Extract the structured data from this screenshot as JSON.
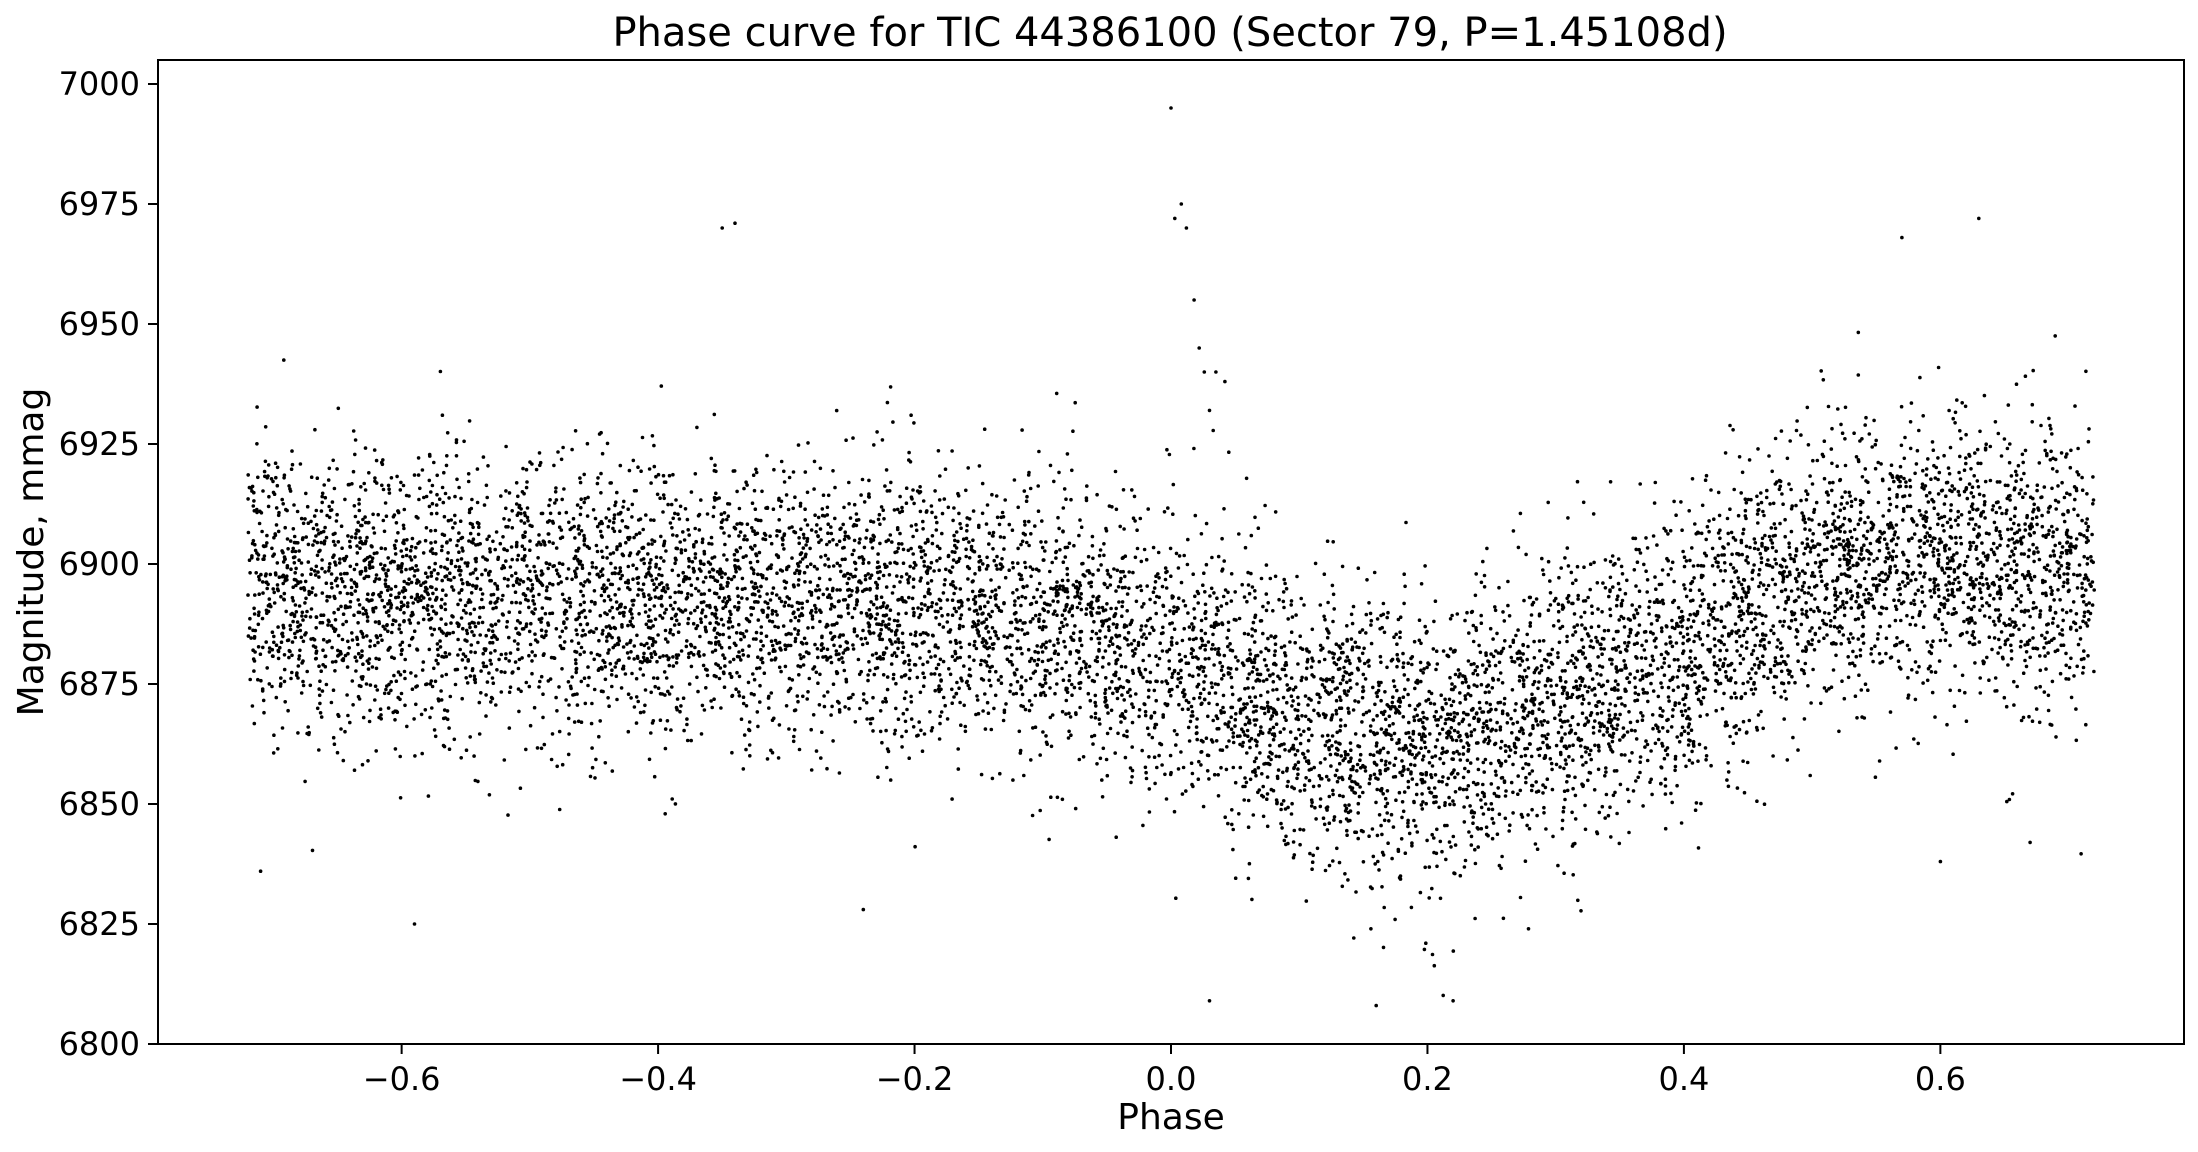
{
  "chart_data": {
    "type": "scatter",
    "title": "Phase curve for TIC 44386100 (Sector 79, P=1.45108d)",
    "xlabel": "Phase",
    "ylabel": "Magnitude, mmag",
    "xlim": [
      -0.79,
      0.79
    ],
    "ylim": [
      6800,
      7005
    ],
    "x_ticks": [
      -0.6,
      -0.4,
      -0.2,
      0.0,
      0.2,
      0.4,
      0.6
    ],
    "x_tick_labels": [
      "−0.6",
      "−0.4",
      "−0.2",
      "0.0",
      "0.2",
      "0.4",
      "0.6"
    ],
    "y_ticks": [
      6800,
      6825,
      6850,
      6875,
      6900,
      6925,
      6950,
      6975,
      7000
    ],
    "y_tick_labels": [
      "6800",
      "6825",
      "6850",
      "6875",
      "6900",
      "6925",
      "6950",
      "6975",
      "7000"
    ],
    "grid": false,
    "marker_color": "#000000",
    "phase_range": [
      -0.72,
      0.72
    ],
    "trend": {
      "x": [
        -0.72,
        -0.6,
        -0.4,
        -0.2,
        -0.1,
        0.0,
        0.1,
        0.15,
        0.2,
        0.25,
        0.3,
        0.4,
        0.5,
        0.6,
        0.72
      ],
      "y": [
        6895,
        6893,
        6893,
        6892,
        6888,
        6880,
        6868,
        6864,
        6864,
        6866,
        6872,
        6883,
        6898,
        6902,
        6898
      ]
    },
    "scatter_sd": 15,
    "n_points": 9000,
    "outliers": [
      {
        "x": 0.0,
        "y": 6995
      },
      {
        "x": 0.003,
        "y": 6972
      },
      {
        "x": 0.008,
        "y": 6975
      },
      {
        "x": 0.012,
        "y": 6970
      },
      {
        "x": 0.018,
        "y": 6955
      },
      {
        "x": 0.022,
        "y": 6945
      },
      {
        "x": 0.026,
        "y": 6940
      },
      {
        "x": 0.03,
        "y": 6932
      },
      {
        "x": 0.035,
        "y": 6940
      },
      {
        "x": 0.042,
        "y": 6938
      },
      {
        "x": -0.34,
        "y": 6971
      },
      {
        "x": -0.35,
        "y": 6970
      },
      {
        "x": 0.57,
        "y": 6968
      },
      {
        "x": 0.63,
        "y": 6972
      },
      {
        "x": -0.59,
        "y": 6825
      },
      {
        "x": -0.24,
        "y": 6828
      },
      {
        "x": 0.03,
        "y": 6809
      },
      {
        "x": 0.16,
        "y": 6808
      },
      {
        "x": 0.22,
        "y": 6809
      },
      {
        "x": -0.71,
        "y": 6836
      },
      {
        "x": 0.6,
        "y": 6838
      },
      {
        "x": 0.67,
        "y": 6842
      }
    ]
  }
}
